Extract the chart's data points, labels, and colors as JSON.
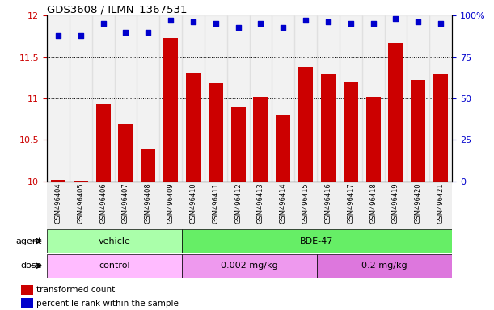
{
  "title": "GDS3608 / ILMN_1367531",
  "samples": [
    "GSM496404",
    "GSM496405",
    "GSM496406",
    "GSM496407",
    "GSM496408",
    "GSM496409",
    "GSM496410",
    "GSM496411",
    "GSM496412",
    "GSM496413",
    "GSM496414",
    "GSM496415",
    "GSM496416",
    "GSM496417",
    "GSM496418",
    "GSM496419",
    "GSM496420",
    "GSM496421"
  ],
  "bar_values": [
    10.02,
    10.01,
    10.93,
    10.7,
    10.4,
    11.73,
    11.3,
    11.18,
    10.89,
    11.02,
    10.79,
    11.38,
    11.29,
    11.2,
    11.02,
    11.67,
    11.22,
    11.29
  ],
  "percentile_values": [
    88,
    88,
    95,
    90,
    90,
    97,
    96,
    95,
    93,
    95,
    93,
    97,
    96,
    95,
    95,
    98,
    96,
    95
  ],
  "bar_color": "#cc0000",
  "dot_color": "#0000cc",
  "ylim_left": [
    10.0,
    12.0
  ],
  "ylim_right": [
    0,
    100
  ],
  "yticks_left": [
    10.0,
    10.5,
    11.0,
    11.5,
    12.0
  ],
  "yticks_right": [
    0,
    25,
    50,
    75,
    100
  ],
  "grid_values": [
    10.5,
    11.0,
    11.5
  ],
  "agent_groups": [
    {
      "label": "vehicle",
      "start": 0,
      "end": 6,
      "color": "#aaffaa"
    },
    {
      "label": "BDE-47",
      "start": 6,
      "end": 18,
      "color": "#66ee66"
    }
  ],
  "dose_groups": [
    {
      "label": "control",
      "start": 0,
      "end": 6,
      "color": "#ffbbff"
    },
    {
      "label": "0.002 mg/kg",
      "start": 6,
      "end": 12,
      "color": "#ee99ee"
    },
    {
      "label": "0.2 mg/kg",
      "start": 12,
      "end": 18,
      "color": "#dd77dd"
    }
  ],
  "legend_bar_label": "transformed count",
  "legend_dot_label": "percentile rank within the sample",
  "tick_bg_color": "#cccccc"
}
